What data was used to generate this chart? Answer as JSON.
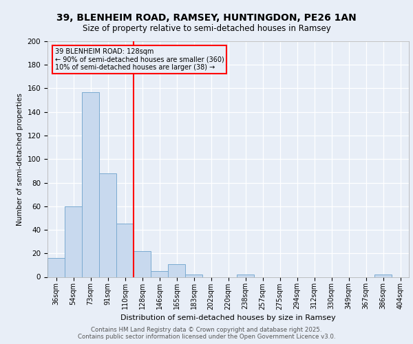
{
  "title_line1": "39, BLENHEIM ROAD, RAMSEY, HUNTINGDON, PE26 1AN",
  "title_line2": "Size of property relative to semi-detached houses in Ramsey",
  "xlabel": "Distribution of semi-detached houses by size in Ramsey",
  "ylabel": "Number of semi-detached properties",
  "categories": [
    "36sqm",
    "54sqm",
    "73sqm",
    "91sqm",
    "110sqm",
    "128sqm",
    "146sqm",
    "165sqm",
    "183sqm",
    "202sqm",
    "220sqm",
    "238sqm",
    "257sqm",
    "275sqm",
    "294sqm",
    "312sqm",
    "330sqm",
    "349sqm",
    "367sqm",
    "386sqm",
    "404sqm"
  ],
  "values": [
    16,
    60,
    157,
    88,
    45,
    22,
    5,
    11,
    2,
    0,
    0,
    2,
    0,
    0,
    0,
    0,
    0,
    0,
    0,
    2,
    0
  ],
  "bar_color": "#c8d9ee",
  "bar_edge_color": "#7aaad0",
  "vline_color": "red",
  "vline_index": 4.5,
  "annotation_title": "39 BLENHEIM ROAD: 128sqm",
  "annotation_line2": "← 90% of semi-detached houses are smaller (360)",
  "annotation_line3": "10% of semi-detached houses are larger (38) →",
  "annotation_box_color": "red",
  "ylim": [
    0,
    200
  ],
  "yticks": [
    0,
    20,
    40,
    60,
    80,
    100,
    120,
    140,
    160,
    180,
    200
  ],
  "footnote_line1": "Contains HM Land Registry data © Crown copyright and database right 2025.",
  "footnote_line2": "Contains public sector information licensed under the Open Government Licence v3.0.",
  "background_color": "#e8eef7",
  "plot_background_color": "#e8eef7"
}
